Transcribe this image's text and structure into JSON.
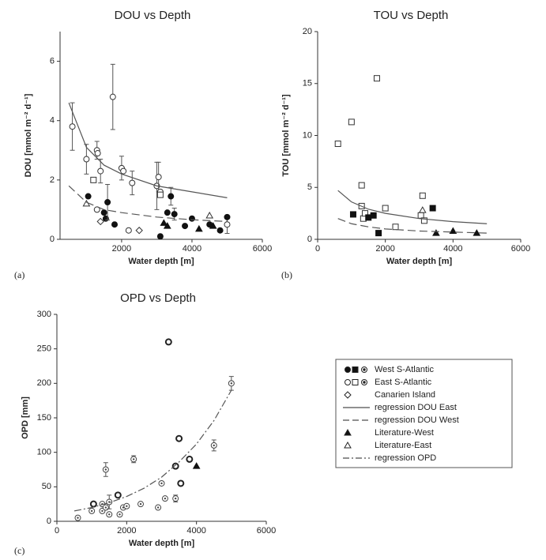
{
  "chart_data": [
    {
      "type": "scatter",
      "title": "DOU vs Depth",
      "panel_label": "(a)",
      "xlabel": "Water depth [m]",
      "ylabel": "DOU [mmol m⁻² d⁻¹]",
      "xlim": [
        250,
        6000
      ],
      "xticks": [
        2000,
        4000,
        6000
      ],
      "ylim": [
        0,
        7
      ],
      "yticks": [
        0,
        2,
        4,
        6
      ],
      "series": [
        {
          "marker": "circle-open",
          "color": "#333",
          "x": [
            600,
            1000,
            1300,
            1320,
            1400,
            1750,
            2000,
            2050,
            2300,
            3000,
            3050,
            3100,
            5000
          ],
          "y": [
            3.8,
            2.7,
            3.0,
            2.9,
            2.3,
            4.8,
            2.4,
            2.3,
            1.9,
            1.8,
            2.1,
            1.6,
            0.5
          ],
          "errors": [
            0.8,
            0.5,
            0.3,
            null,
            0.4,
            1.1,
            0.4,
            null,
            0.4,
            0.8,
            0.5,
            null,
            0.3
          ]
        },
        {
          "marker": "circle-filled",
          "color": "#111",
          "x": [
            1050,
            1500,
            1550,
            1600,
            1800,
            3100,
            3300,
            3400,
            3500,
            3800,
            4000,
            4500,
            4800,
            5000
          ],
          "y": [
            1.45,
            0.9,
            0.7,
            1.25,
            0.5,
            0.1,
            0.9,
            1.45,
            0.85,
            0.45,
            0.7,
            0.5,
            0.3,
            0.75
          ],
          "errors": [
            null,
            null,
            null,
            0.6,
            null,
            null,
            null,
            0.3,
            0.2,
            null,
            null,
            null,
            null,
            null
          ]
        },
        {
          "marker": "square-open",
          "color": "#333",
          "x": [
            1200,
            3100
          ],
          "y": [
            2.0,
            1.5
          ]
        },
        {
          "marker": "diamond-open",
          "color": "#333",
          "x": [
            1400,
            2500
          ],
          "y": [
            0.6,
            0.3
          ]
        },
        {
          "marker": "circle-open",
          "color": "#333",
          "x": [
            1300,
            2200
          ],
          "y": [
            1.0,
            0.3
          ]
        },
        {
          "marker": "triangle-filled",
          "color": "#111",
          "x": [
            3200,
            3300,
            4200,
            4600
          ],
          "y": [
            0.55,
            0.45,
            0.35,
            0.45
          ]
        },
        {
          "marker": "triangle-open",
          "color": "#333",
          "x": [
            1000,
            4500
          ],
          "y": [
            1.2,
            0.8
          ]
        },
        {
          "line": "solid",
          "color": "#555",
          "x": [
            500,
            1000,
            1500,
            2000,
            3000,
            4000,
            5000
          ],
          "y": [
            4.6,
            3.1,
            2.5,
            2.2,
            1.8,
            1.6,
            1.4
          ]
        },
        {
          "line": "dashed",
          "color": "#555",
          "x": [
            500,
            1000,
            1500,
            2000,
            3000,
            4000,
            5000
          ],
          "y": [
            1.8,
            1.25,
            1.0,
            0.9,
            0.75,
            0.66,
            0.6
          ]
        }
      ]
    },
    {
      "type": "scatter",
      "title": "TOU vs Depth",
      "panel_label": "(b)",
      "xlabel": "Water depth [m]",
      "ylabel": "TOU [mmol m⁻² d⁻¹]",
      "xlim": [
        0,
        6000
      ],
      "xticks": [
        0,
        2000,
        4000,
        6000
      ],
      "ylim": [
        0,
        20
      ],
      "yticks": [
        0,
        5,
        10,
        15,
        20
      ],
      "series": [
        {
          "marker": "square-open",
          "color": "#333",
          "x": [
            600,
            1000,
            1300,
            1300,
            1350,
            1400,
            1750,
            2000,
            2300,
            3050,
            3100,
            3150
          ],
          "y": [
            9.2,
            11.3,
            5.2,
            3.2,
            2.0,
            2.5,
            15.5,
            3.0,
            1.2,
            2.3,
            4.2,
            1.8
          ]
        },
        {
          "marker": "square-filled",
          "color": "#111",
          "x": [
            1050,
            1500,
            1650,
            1800,
            3400
          ],
          "y": [
            2.4,
            2.1,
            2.3,
            0.6,
            3.0
          ]
        },
        {
          "marker": "triangle-filled",
          "color": "#111",
          "x": [
            3500,
            4000,
            4700
          ],
          "y": [
            0.6,
            0.8,
            0.6
          ]
        },
        {
          "marker": "triangle-open",
          "color": "#333",
          "x": [
            3100
          ],
          "y": [
            2.8
          ]
        },
        {
          "line": "solid",
          "color": "#555",
          "x": [
            600,
            1000,
            1500,
            2000,
            3000,
            4000,
            5000
          ],
          "y": [
            4.7,
            3.6,
            2.9,
            2.5,
            2.0,
            1.7,
            1.5
          ]
        },
        {
          "line": "dashed",
          "color": "#555",
          "x": [
            600,
            1000,
            1500,
            2000,
            3000,
            4000,
            5000
          ],
          "y": [
            2.0,
            1.5,
            1.2,
            1.0,
            0.8,
            0.7,
            0.6
          ]
        }
      ]
    },
    {
      "type": "scatter",
      "title": "OPD vs Depth",
      "panel_label": "(c)",
      "xlabel": "Water depth [m]",
      "ylabel": "OPD [mm]",
      "xlim": [
        0,
        6000
      ],
      "xticks": [
        0,
        2000,
        4000,
        6000
      ],
      "ylim": [
        0,
        300
      ],
      "yticks": [
        0,
        50,
        100,
        150,
        200,
        250,
        300
      ],
      "series": [
        {
          "marker": "circle-bold",
          "color": "#222",
          "x": [
            1050,
            1750,
            3200,
            3400,
            3500,
            3550,
            3800
          ],
          "y": [
            25,
            38,
            260,
            80,
            120,
            55,
            90
          ]
        },
        {
          "marker": "triangle-filled",
          "color": "#111",
          "x": [
            4000
          ],
          "y": [
            80
          ]
        },
        {
          "marker": "circle-dot",
          "color": "#444",
          "x": [
            600,
            1000,
            1300,
            1300,
            1400,
            1500,
            1800,
            1900,
            2000,
            2400,
            2900,
            3000,
            3100,
            1400,
            1500,
            2200,
            3400,
            4500,
            5000
          ],
          "y": [
            5,
            15,
            15,
            25,
            20,
            10,
            10,
            20,
            22,
            25,
            20,
            55,
            33,
            75,
            28,
            90,
            33,
            110,
            200
          ],
          "errors": [
            null,
            null,
            null,
            null,
            null,
            null,
            null,
            null,
            null,
            null,
            null,
            null,
            null,
            10,
            10,
            5,
            5,
            8,
            10
          ]
        },
        {
          "line": "dashdot",
          "color": "#555",
          "x": [
            500,
            1000,
            1500,
            2000,
            2500,
            3000,
            3500,
            4000,
            4500,
            5000
          ],
          "y": [
            15,
            20,
            27,
            36,
            48,
            64,
            86,
            112,
            146,
            190
          ]
        }
      ]
    }
  ],
  "legend": {
    "entries": [
      "West S-Atlantic",
      "East S-Atlantic",
      "Canarien Island",
      "regression DOU East",
      "regression DOU West",
      "Literature-West",
      "Literature-East",
      "regression OPD"
    ]
  }
}
